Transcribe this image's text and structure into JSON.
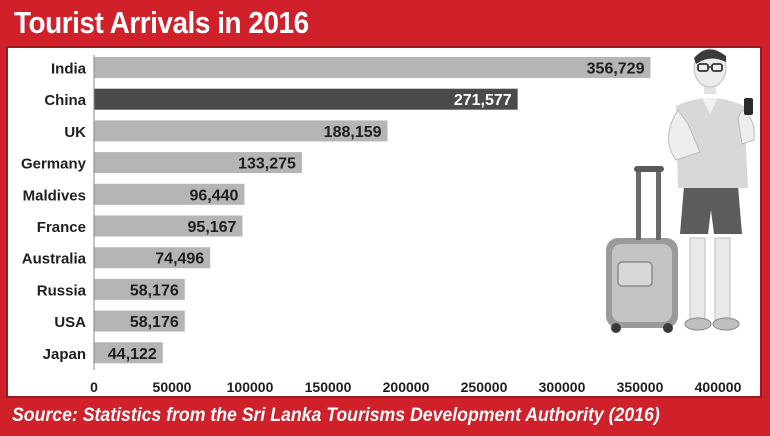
{
  "title": "Tourist Arrivals in 2016",
  "source": "Source: Statistics from the Sri Lanka Tourisms Development Authority (2016)",
  "colors": {
    "frame": "#d0202a",
    "bar": "#b5b5b5",
    "highlight_bar": "#4a4a4a"
  },
  "illustration": {
    "icon": "tourist-with-suitcase-icon"
  },
  "chart_data": {
    "type": "bar",
    "orientation": "horizontal",
    "categories": [
      "India",
      "China",
      "UK",
      "Germany",
      "Maldives",
      "France",
      "Australia",
      "Russia",
      "USA",
      "Japan"
    ],
    "values": [
      356729,
      271577,
      188159,
      133275,
      96440,
      95167,
      74496,
      58176,
      58176,
      44122
    ],
    "value_labels": [
      "356,729",
      "271,577",
      "188,159",
      "133,275",
      "96,440",
      "95,167",
      "74,496",
      "58,176",
      "58,176",
      "44,122"
    ],
    "highlight": "China",
    "xlim": [
      0,
      400000
    ],
    "xticks": [
      0,
      50000,
      100000,
      150000,
      200000,
      250000,
      300000,
      350000,
      400000
    ],
    "xtick_labels": [
      "0",
      "50000",
      "100000",
      "150000",
      "200000",
      "250000",
      "300000",
      "350000",
      "400000"
    ],
    "title": "Tourist Arrivals in 2016",
    "xlabel": "",
    "ylabel": "",
    "grid": false,
    "legend": "none"
  }
}
